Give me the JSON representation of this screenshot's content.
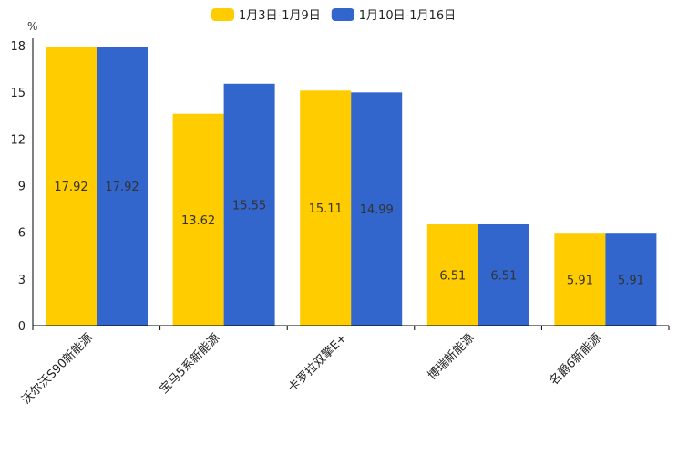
{
  "chart_data": {
    "type": "bar",
    "title": "",
    "ylabel": "%",
    "xlabel": "",
    "ylim": [
      0,
      18
    ],
    "yticks": [
      0,
      3,
      6,
      9,
      12,
      15,
      18
    ],
    "categories": [
      "沃尔沃S90新能源",
      "宝马5系新能源",
      "卡罗拉双擎E+",
      "博瑞新能源",
      "名爵6新能源"
    ],
    "series": [
      {
        "name": "1月3日-1月9日",
        "color": "#FFCC00",
        "values": [
          17.92,
          13.62,
          15.11,
          6.51,
          5.91
        ]
      },
      {
        "name": "1月10日-1月16日",
        "color": "#3366CC",
        "values": [
          17.92,
          15.55,
          14.99,
          6.51,
          5.91
        ]
      }
    ],
    "legend_position": "top-center",
    "grid": false
  }
}
